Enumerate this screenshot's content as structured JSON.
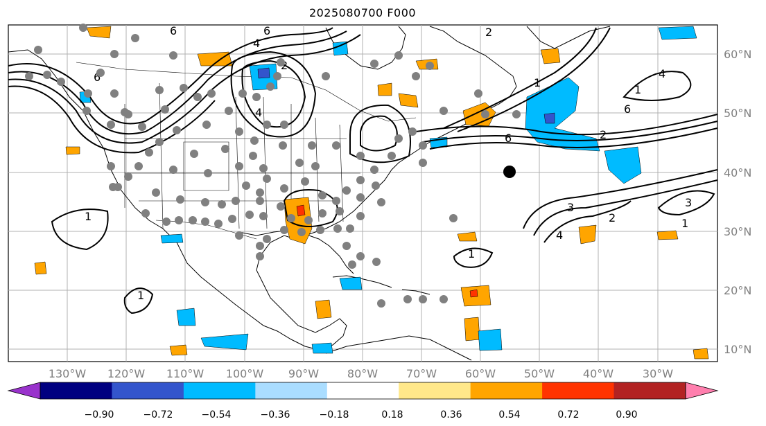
{
  "title": "2025080700 F000",
  "map": {
    "lat_ticks": [
      "60°N",
      "50°N",
      "40°N",
      "30°N",
      "20°N",
      "10°N"
    ],
    "lon_ticks": [
      "130°W",
      "120°W",
      "110°W",
      "100°W",
      "90°W",
      "80°W",
      "70°W",
      "60°W",
      "50°W",
      "40°W",
      "30°W"
    ],
    "contour_labels": [
      "6",
      "4",
      "6",
      "2",
      "6",
      "4",
      "2",
      "1",
      "6",
      "4",
      "6",
      "2",
      "1",
      "3",
      "2",
      "1",
      "3",
      "4",
      "1",
      "1",
      "1"
    ],
    "observation_dot_color": "#808080",
    "highlight_dot_color": "#000000"
  },
  "colorbar": {
    "colors": [
      "#9933cc",
      "#000080",
      "#3355cc",
      "#00bbff",
      "#aaddff",
      "#ffffff",
      "#ffe88a",
      "#ffa500",
      "#ff3300",
      "#b22222",
      "#ff7fae"
    ],
    "tick_labels": [
      "−0.90",
      "−0.72",
      "−0.54",
      "−0.36",
      "−0.18",
      "0.18",
      "0.36",
      "0.54",
      "0.72",
      "0.90"
    ]
  }
}
